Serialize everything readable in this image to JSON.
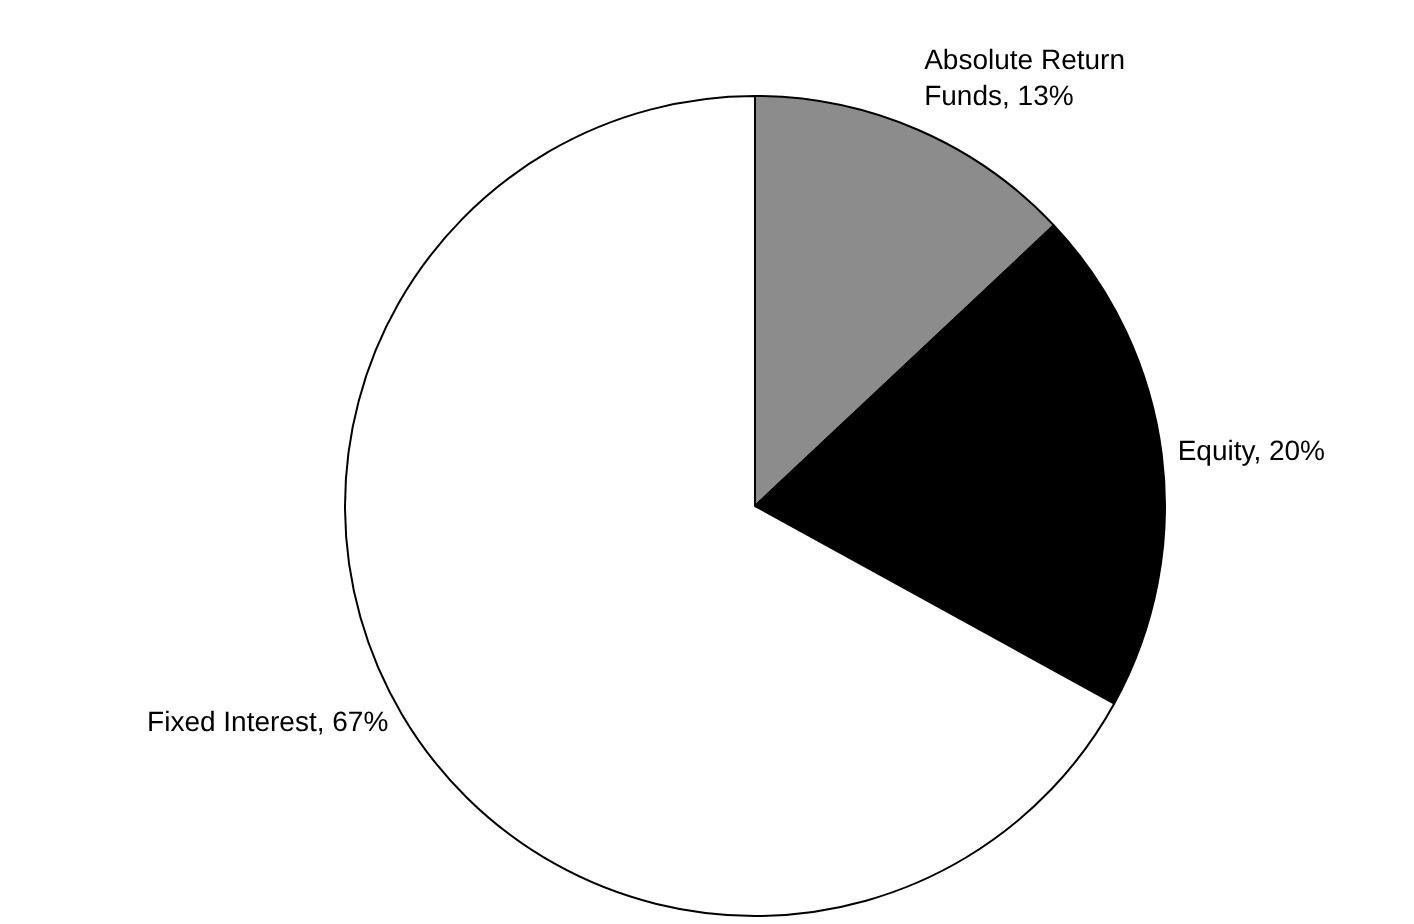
{
  "chart_data": {
    "type": "pie",
    "categories": [
      "Absolute Return Funds",
      "Equity",
      "Fixed Interest"
    ],
    "values": [
      13,
      20,
      67
    ],
    "colors": [
      "#8c8c8c",
      "#000000",
      "#ffffff"
    ],
    "value_labels": [
      "13%",
      "20%",
      "67%"
    ],
    "legend": false
  }
}
